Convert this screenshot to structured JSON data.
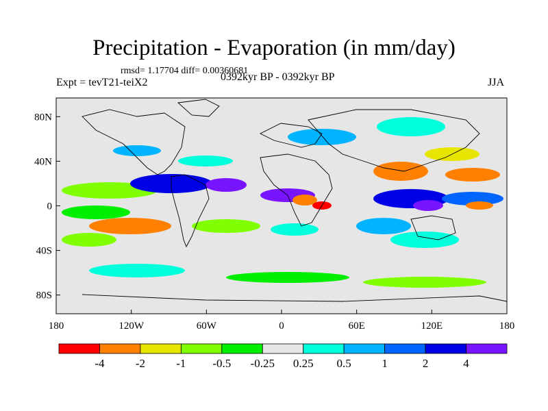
{
  "title": "Precipitation - Evaporation (in mm/day)",
  "stats": "rmsd= 1.17704 diff= 0.00360681",
  "experiment": "Expt = tevT21-teiX2",
  "period": "0392kyr BP - 0392kyr BP",
  "season": "JJA",
  "lat_labels": [
    {
      "text": "80N",
      "lat": 80
    },
    {
      "text": "40N",
      "lat": 40
    },
    {
      "text": "0",
      "lat": 0
    },
    {
      "text": "40S",
      "lat": -40
    },
    {
      "text": "80S",
      "lat": -80
    }
  ],
  "lon_labels": [
    {
      "text": "180",
      "lon": -180
    },
    {
      "text": "120W",
      "lon": -120
    },
    {
      "text": "60W",
      "lon": -60
    },
    {
      "text": "0",
      "lon": 0
    },
    {
      "text": "60E",
      "lon": 60
    },
    {
      "text": "120E",
      "lon": 120
    },
    {
      "text": "180",
      "lon": 180
    }
  ],
  "colorbar": {
    "colors": [
      "#ff0000",
      "#ff8000",
      "#e6e600",
      "#80ff00",
      "#00ee00",
      "#e6e6e6",
      "#00ffdd",
      "#00b4ff",
      "#0064ff",
      "#0000e6",
      "#7814ff"
    ],
    "labels": [
      "-4",
      "-2",
      "-1",
      "-0.5",
      "-0.25",
      "0.25",
      "0.5",
      "1",
      "2",
      "4"
    ]
  },
  "colors": {
    "background": "#e6e6e6",
    "coast": "#000000"
  }
}
